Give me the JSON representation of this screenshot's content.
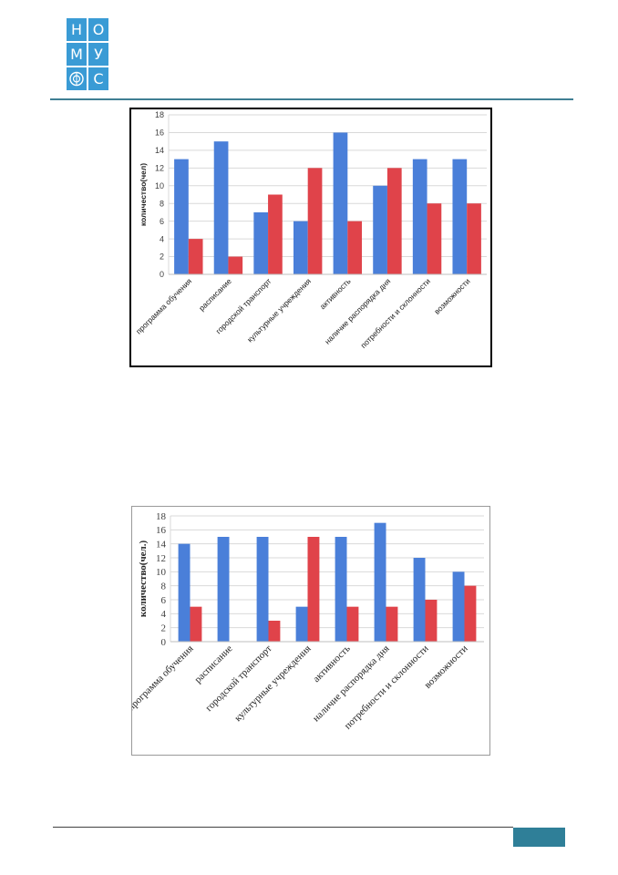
{
  "logo": {
    "letters": [
      "Н",
      "О",
      "М",
      "У",
      "С"
    ],
    "color": "#3a9bd5"
  },
  "colors": {
    "series_blue": "#4a7fd9",
    "series_red": "#e0434a",
    "grid": "#d9d9d9",
    "header_rule": "#3f7f93",
    "page_box": "#2f7f98"
  },
  "chart_data": [
    {
      "type": "bar",
      "categories": [
        "программа обучения",
        "расписание",
        "городской транспорт",
        "культурные учреждения",
        "активность",
        "наличие распорядка дня",
        "потребности и склонности",
        "возможности"
      ],
      "series": [
        {
          "values": [
            13,
            15,
            7,
            6,
            16,
            10,
            13,
            13
          ]
        },
        {
          "values": [
            4,
            2,
            9,
            12,
            6,
            12,
            8,
            8
          ]
        }
      ],
      "ylabel": "количество(чел)",
      "ylim": [
        0,
        18
      ],
      "yticks": [
        0,
        2,
        4,
        6,
        8,
        10,
        12,
        14,
        16,
        18
      ],
      "grid": true,
      "font": "sans"
    },
    {
      "type": "bar",
      "categories": [
        "программа обучения",
        "расписание",
        "городской транспорт",
        "культурные учреждения",
        "активность",
        "наличие распорядка дня",
        "потребности и склонности",
        "возможности"
      ],
      "series": [
        {
          "values": [
            14,
            15,
            15,
            5,
            15,
            17,
            12,
            10
          ]
        },
        {
          "values": [
            5,
            0,
            3,
            15,
            5,
            5,
            6,
            8
          ]
        }
      ],
      "ylabel": "количество(чел.)",
      "ylim": [
        0,
        18
      ],
      "yticks": [
        0,
        2,
        4,
        6,
        8,
        10,
        12,
        14,
        16,
        18
      ],
      "grid": true,
      "font": "serif"
    }
  ]
}
